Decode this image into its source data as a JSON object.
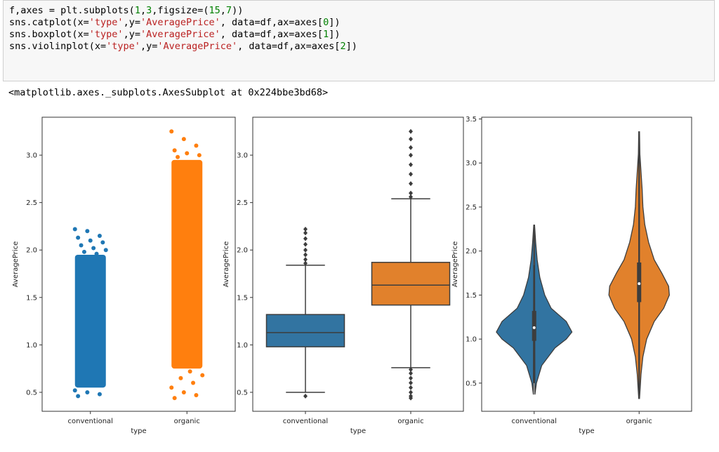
{
  "code": [
    "f,axes = plt.subplots(1,3,figsize=(15,7))",
    "sns.catplot(x='type',y='AveragePrice', data=df,ax=axes[0])",
    "sns.boxplot(x='type',y='AveragePrice', data=df,ax=axes[1])",
    "sns.violinplot(x='type',y='AveragePrice', data=df,ax=axes[2])"
  ],
  "output": "<matplotlib.axes._subplots.AxesSubplot at 0x224bbe3bd68>",
  "chart_data": [
    {
      "type": "strip",
      "xlabel": "type",
      "ylabel": "AveragePrice",
      "categories": [
        "conventional",
        "organic"
      ],
      "colors": [
        "#1f77b4",
        "#ff7f0e"
      ],
      "ranges": [
        [
          0.55,
          1.95
        ],
        [
          0.75,
          2.95
        ]
      ],
      "points": [
        [
          2.22,
          2.2,
          2.15,
          2.13,
          2.1,
          2.08,
          2.05,
          2.02,
          2.0,
          1.98,
          1.96,
          0.52,
          0.5,
          0.48,
          0.46
        ],
        [
          3.25,
          3.17,
          3.1,
          3.05,
          3.02,
          3.0,
          2.98,
          0.72,
          0.68,
          0.65,
          0.6,
          0.55,
          0.5,
          0.47,
          0.44
        ]
      ],
      "ylim": [
        0.3,
        3.4
      ],
      "yticks": [
        {
          "value": 0.5,
          "label": "0.5"
        },
        {
          "value": 1,
          "label": "1.0"
        },
        {
          "value": 1.5,
          "label": "1.5"
        },
        {
          "value": 2,
          "label": "2.0"
        },
        {
          "value": 2.5,
          "label": "2.5"
        },
        {
          "value": 3,
          "label": "3.0"
        }
      ]
    },
    {
      "type": "box",
      "xlabel": "type",
      "ylabel": "AveragePrice",
      "categories": [
        "conventional",
        "organic"
      ],
      "colors": [
        "#3274a1",
        "#e1812c"
      ],
      "boxes": [
        {
          "whislo": 0.5,
          "q1": 0.98,
          "med": 1.13,
          "q3": 1.32,
          "whishi": 1.84,
          "fliers": [
            2.22,
            2.18,
            2.12,
            2.06,
            2.0,
            1.95,
            1.9,
            1.86,
            0.46
          ]
        },
        {
          "whislo": 0.76,
          "q1": 1.42,
          "med": 1.63,
          "q3": 1.87,
          "whishi": 2.54,
          "fliers": [
            3.25,
            3.17,
            3.08,
            3.0,
            2.9,
            2.8,
            2.7,
            2.6,
            2.56,
            0.74,
            0.7,
            0.65,
            0.6,
            0.55,
            0.5,
            0.46,
            0.44
          ]
        }
      ],
      "ylim": [
        0.3,
        3.4
      ],
      "yticks": [
        {
          "value": 0.5,
          "label": "0.5"
        },
        {
          "value": 1,
          "label": "1.0"
        },
        {
          "value": 1.5,
          "label": "1.5"
        },
        {
          "value": 2,
          "label": "2.0"
        },
        {
          "value": 2.5,
          "label": "2.5"
        },
        {
          "value": 3,
          "label": "3.0"
        }
      ]
    },
    {
      "type": "violin",
      "xlabel": "type",
      "ylabel": "AveragePrice",
      "categories": [
        "conventional",
        "organic"
      ],
      "colors": [
        "#3274a1",
        "#e1812c"
      ],
      "violins": [
        {
          "y": [
            0.37,
            0.5,
            0.7,
            0.9,
            1.0,
            1.08,
            1.2,
            1.35,
            1.5,
            1.7,
            1.9,
            2.1,
            2.3
          ],
          "width": [
            0.02,
            0.06,
            0.2,
            0.55,
            0.85,
            1.0,
            0.85,
            0.45,
            0.28,
            0.15,
            0.08,
            0.04,
            0.01
          ],
          "whislo": 0.5,
          "q1": 0.98,
          "med": 1.13,
          "q3": 1.32,
          "whishi": 1.84
        },
        {
          "y": [
            0.32,
            0.6,
            0.8,
            1.0,
            1.2,
            1.35,
            1.5,
            1.6,
            1.75,
            1.9,
            2.1,
            2.3,
            2.5,
            2.7,
            2.9,
            3.1,
            3.36
          ],
          "width": [
            0.01,
            0.05,
            0.1,
            0.2,
            0.4,
            0.65,
            0.8,
            0.78,
            0.6,
            0.4,
            0.25,
            0.15,
            0.1,
            0.08,
            0.05,
            0.02,
            0.01
          ],
          "whislo": 0.76,
          "q1": 1.42,
          "med": 1.63,
          "q3": 1.87,
          "whishi": 2.54
        }
      ],
      "ylim": [
        0.18,
        3.52
      ],
      "yticks": [
        {
          "value": 0.5,
          "label": "0.5"
        },
        {
          "value": 1,
          "label": "1.0"
        },
        {
          "value": 1.5,
          "label": "1.5"
        },
        {
          "value": 2,
          "label": "2.0"
        },
        {
          "value": 2.5,
          "label": "2.5"
        },
        {
          "value": 3,
          "label": "3.0"
        },
        {
          "value": 3.5,
          "label": "3.5"
        }
      ]
    }
  ]
}
